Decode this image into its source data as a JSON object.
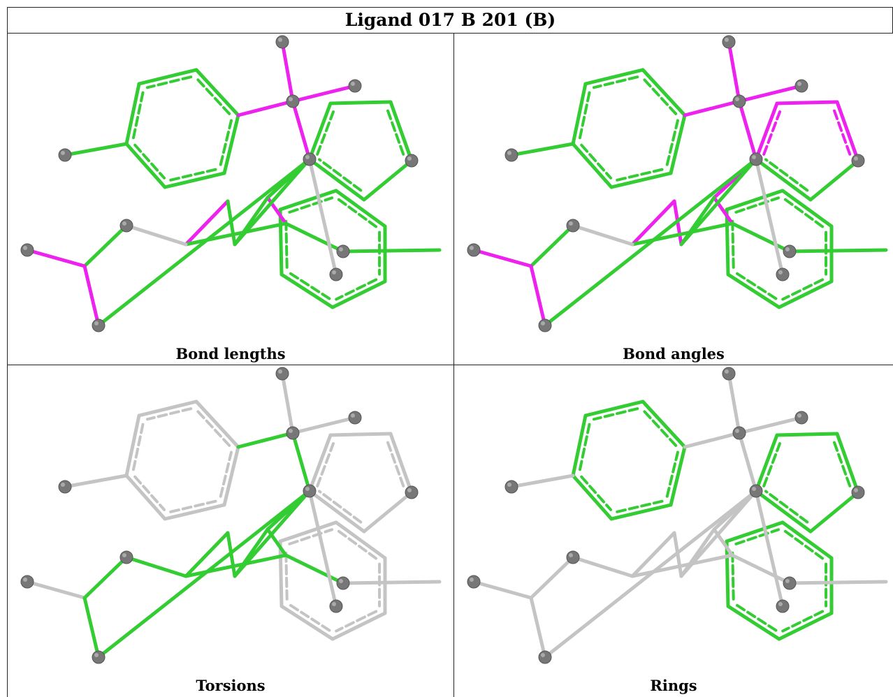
{
  "title": "Ligand 017 B 201 (B)",
  "colors": {
    "ok": "#33cc33",
    "outlier": "#ee22ee",
    "neutral": "#c4c4c4",
    "atom": "#777777",
    "atom_highlight": "#aaaaaa"
  },
  "panels": [
    {
      "caption": "Bond lengths",
      "mode": "lengths"
    },
    {
      "caption": "Bond angles",
      "mode": "angles"
    },
    {
      "caption": "Torsions",
      "mode": "torsions"
    },
    {
      "caption": "Rings",
      "mode": "rings"
    }
  ]
}
